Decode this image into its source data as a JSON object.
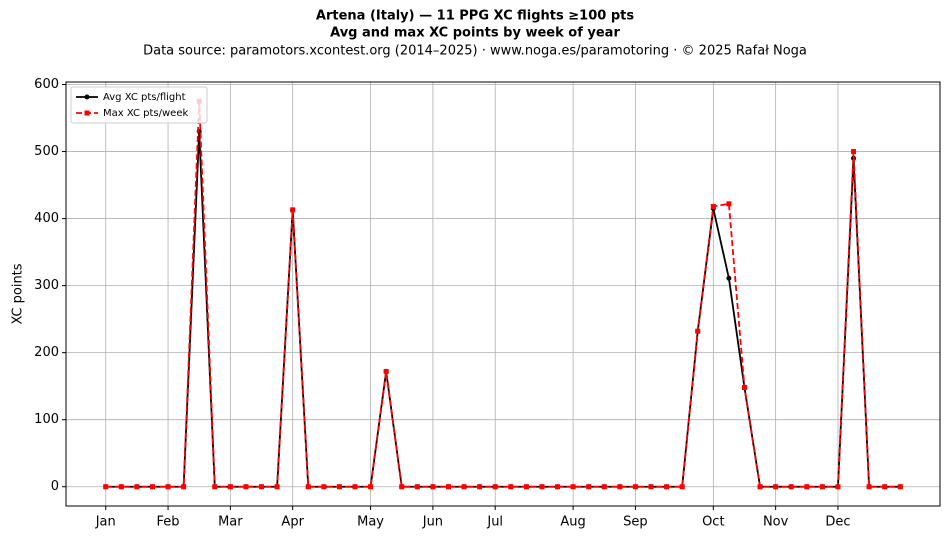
{
  "chart_data": {
    "type": "line",
    "title": "Artena (Italy)  —  11 PPG XC flights ≥100 pts",
    "subtitle": "Avg and max XC points by week of year",
    "source": "Data source: paramotors.xcontest.org (2014–2025)  ·  www.noga.es/paramotoring  ·  © 2025 Rafał Noga",
    "y_label": "XC points",
    "x": [
      1,
      2,
      3,
      4,
      5,
      6,
      7,
      8,
      9,
      10,
      11,
      12,
      13,
      14,
      15,
      16,
      17,
      18,
      19,
      20,
      21,
      22,
      23,
      24,
      25,
      26,
      27,
      28,
      29,
      30,
      31,
      32,
      33,
      34,
      35,
      36,
      37,
      38,
      39,
      40,
      41,
      42,
      43,
      44,
      45,
      46,
      47,
      48,
      49,
      50,
      51,
      52
    ],
    "series": [
      {
        "name": "Avg XC pts/flight",
        "color": "#000000",
        "marker": "circle",
        "dash": false,
        "values": [
          0,
          0,
          0,
          0,
          0,
          0,
          530,
          0,
          0,
          0,
          0,
          0,
          413,
          0,
          0,
          0,
          0,
          0,
          172,
          0,
          0,
          0,
          0,
          0,
          0,
          0,
          0,
          0,
          0,
          0,
          0,
          0,
          0,
          0,
          0,
          0,
          0,
          0,
          232,
          415,
          311,
          148,
          0,
          0,
          0,
          0,
          0,
          0,
          490,
          0,
          0,
          0
        ]
      },
      {
        "name": "Max XC pts/week",
        "color": "#ff0000",
        "marker": "square",
        "dash": true,
        "values": [
          0,
          0,
          0,
          0,
          0,
          0,
          575,
          0,
          0,
          0,
          0,
          0,
          413,
          0,
          0,
          0,
          0,
          0,
          172,
          0,
          0,
          0,
          0,
          0,
          0,
          0,
          0,
          0,
          0,
          0,
          0,
          0,
          0,
          0,
          0,
          0,
          0,
          0,
          232,
          418,
          422,
          148,
          0,
          0,
          0,
          0,
          0,
          0,
          500,
          0,
          0,
          0
        ]
      }
    ],
    "xlim": [
      -1.55,
      54.55
    ],
    "xticks": [
      {
        "value": 1,
        "label": "Jan"
      },
      {
        "value": 5,
        "label": "Feb"
      },
      {
        "value": 9,
        "label": "Mar"
      },
      {
        "value": 13,
        "label": "Apr"
      },
      {
        "value": 18,
        "label": "May"
      },
      {
        "value": 22,
        "label": "Jun"
      },
      {
        "value": 26,
        "label": "Jul"
      },
      {
        "value": 31,
        "label": "Aug"
      },
      {
        "value": 35,
        "label": "Sep"
      },
      {
        "value": 40,
        "label": "Oct"
      },
      {
        "value": 44,
        "label": "Nov"
      },
      {
        "value": 48,
        "label": "Dec"
      }
    ],
    "ylim": [
      -28.75,
      603.75
    ],
    "yticks": [
      0,
      100,
      200,
      300,
      400,
      500,
      600
    ],
    "grid": true,
    "legend": "upper-left"
  }
}
